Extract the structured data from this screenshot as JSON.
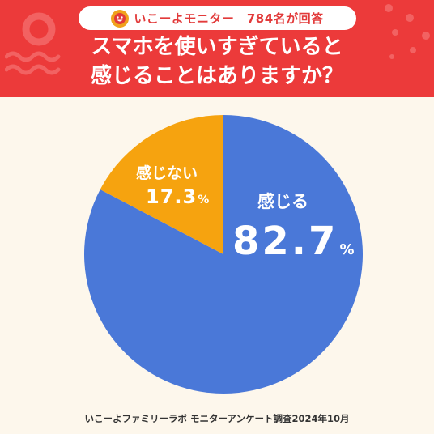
{
  "header": {
    "badge_text": "いこーよモニター　784名が回答",
    "title_line1": "スマホを使いすぎていると",
    "title_line2": "感じることはありますか？"
  },
  "footer": {
    "source": "いこーよファミリーラボ モニターアンケート調査2024年10月"
  },
  "colors": {
    "header_bg": "#ec3a3a",
    "page_bg": "#fdf7ec",
    "slice_main": "#4a78d8",
    "slice_other": "#f6a30f"
  },
  "chart_data": {
    "type": "pie",
    "categories": [
      "感じる",
      "感じない"
    ],
    "values": [
      82.7,
      17.3
    ],
    "unit": "%",
    "title": "スマホを使いすぎていると感じることはありますか？"
  }
}
